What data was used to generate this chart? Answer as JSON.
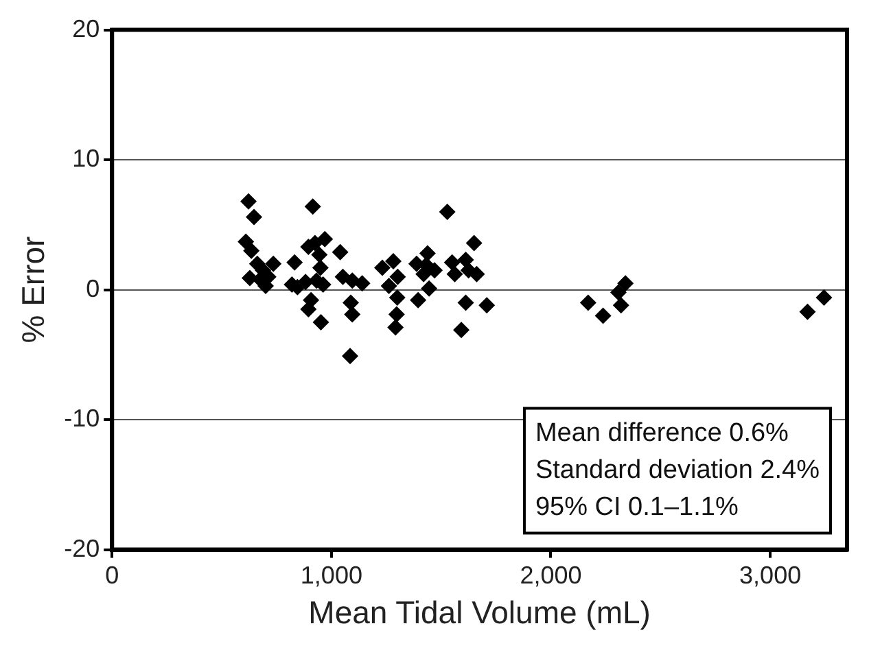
{
  "chart_data": {
    "type": "scatter",
    "xlabel": "Mean Tidal Volume (mL)",
    "ylabel": "% Error",
    "xlim": [
      0,
      3350
    ],
    "xticks": [
      0,
      {
        "value": 1000,
        "label": "1,000"
      },
      {
        "value": 2000,
        "label": "2,000"
      },
      {
        "value": 3000,
        "label": "3,000"
      }
    ],
    "ylim": [
      -20,
      20
    ],
    "yticks": [
      -20,
      -10,
      0,
      10,
      20
    ],
    "grid": "y",
    "legend": false,
    "marker": "diamond",
    "annotations": [
      "Mean difference 0.6%",
      "Standard deviation 2.4%",
      "95% CI 0.1–1.1%"
    ],
    "series": [
      {
        "color": "#000000",
        "x": [
          622,
          647,
          610,
          635,
          628,
          662,
          688,
          700,
          735,
          675,
          712,
          832,
          820,
          845,
          882,
          915,
          895,
          925,
          945,
          970,
          950,
          932,
          962,
          907,
          895,
          952,
          1040,
          1052,
          1095,
          1140,
          1088,
          1095,
          1085,
          1232,
          1282,
          1262,
          1302,
          1300,
          1297,
          1292,
          1388,
          1438,
          1432,
          1470,
          1420,
          1395,
          1445,
          1528,
          1550,
          1562,
          1612,
          1625,
          1650,
          1662,
          1612,
          1592,
          1708,
          2170,
          2238,
          2308,
          2320,
          2340,
          3170,
          3245
        ],
        "values": [
          6.8,
          5.6,
          3.7,
          3.0,
          0.9,
          2.0,
          1.5,
          0.3,
          2.0,
          0.8,
          1.0,
          2.1,
          0.4,
          0.2,
          0.6,
          6.4,
          3.3,
          3.6,
          2.7,
          3.9,
          1.7,
          0.7,
          0.4,
          -0.8,
          -1.5,
          -2.5,
          2.9,
          1.0,
          0.7,
          0.5,
          -1.0,
          -1.9,
          -5.1,
          1.7,
          2.2,
          0.3,
          1.0,
          -0.6,
          -1.9,
          -2.9,
          2.0,
          2.8,
          1.9,
          1.5,
          1.2,
          -0.8,
          0.1,
          6.0,
          2.1,
          1.2,
          2.3,
          1.5,
          3.6,
          1.2,
          -1.0,
          -3.1,
          -1.2,
          -1.0,
          -2.0,
          -0.2,
          -1.2,
          0.5,
          -1.7,
          -0.6
        ]
      }
    ]
  }
}
